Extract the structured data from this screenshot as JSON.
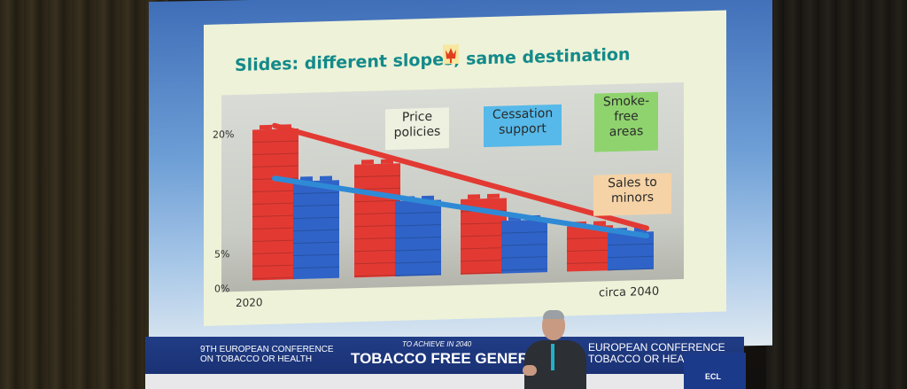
{
  "slide": {
    "title": "Slides: different slopes, same destination",
    "notes": {
      "price": "Price\npolicies",
      "cessation": "Cessation\nsupport",
      "smoke_free": "Smoke-\nfree\nareas",
      "sales": "Sales to\nminors"
    },
    "y_ticks": [
      "20%",
      "5%",
      "0%"
    ],
    "x_start": "2020",
    "x_end": "circa 2040"
  },
  "chart_data": {
    "type": "bar",
    "categories": [
      "",
      "",
      "",
      ""
    ],
    "series": [
      {
        "values": [
          20,
          15,
          10,
          6
        ],
        "color": "#e23a33"
      },
      {
        "values": [
          13,
          10,
          7,
          5
        ],
        "color": "#2f63c7"
      }
    ],
    "trend_lines": [
      {
        "from": 20,
        "to": 5,
        "color": "#e23a33"
      },
      {
        "from": 13,
        "to": 4,
        "color": "#2f8ad6"
      }
    ],
    "ylim": [
      0,
      22
    ],
    "x_start_label": "2020",
    "x_end_label": "circa 2040"
  },
  "banner": {
    "left": "9TH EUROPEAN CONFERENCE\nON TOBACCO OR HEALTH",
    "tagline": "TO ACHIEVE IN 2040",
    "main": "TOBACCO FREE GENERATION",
    "right": "EUROPEAN CONFERENCE\nTOBACCO OR HEALTH",
    "sponsor": "ECL"
  },
  "colors": {
    "title": "#138a8a",
    "note_price": "#eef0e0",
    "note_cessation": "#56b9e9",
    "note_smoke_free": "#8fd36e",
    "note_sales": "#f6d3a6",
    "banner": "#213d86"
  },
  "icons": {
    "logo": "tulip-logo-icon"
  }
}
